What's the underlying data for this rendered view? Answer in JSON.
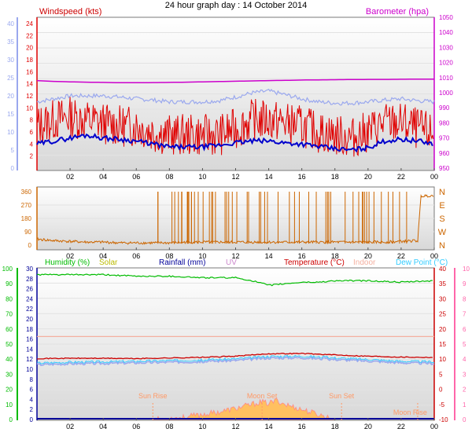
{
  "title": "24 hour graph day : 14 October 2014",
  "colors": {
    "wind": "#e00000",
    "gust_avg": "#0000cc",
    "wind_light": "#9aa8ee",
    "baro": "#cc00cc",
    "dir": "#cc6600",
    "humidity": "#00bb00",
    "solar": "#bbbb00",
    "rain": "#000099",
    "uv": "#cc88cc",
    "temp": "#cc0000",
    "indoor": "#f4b0a0",
    "dew": "#33ccff",
    "solar_fill": "#ffc060",
    "solar_fill2": "#ff8888",
    "marker": "#ff9966"
  },
  "x_labels": [
    "02",
    "04",
    "06",
    "08",
    "10",
    "12",
    "14",
    "16",
    "18",
    "20",
    "22",
    "00"
  ],
  "events": [
    {
      "label": "Sun Rise",
      "x": 7.0
    },
    {
      "label": "Moon Set",
      "x": 13.6
    },
    {
      "label": "Sun Set",
      "x": 18.4
    },
    {
      "label": "Moon Rise",
      "x": 23.0
    }
  ],
  "chart_data": [
    {
      "type": "line",
      "id": "wind",
      "title": "Windspeed (kts)",
      "ylabel_right": "Barometer (hpa)",
      "ylim_left_red": [
        0,
        24
      ],
      "ticks_left_red": [
        2,
        4,
        6,
        8,
        10,
        12,
        14,
        16,
        18,
        20,
        22,
        24
      ],
      "ylim_left_blue": [
        0,
        40
      ],
      "ticks_left_blue": [
        0,
        5,
        10,
        15,
        20,
        25,
        30,
        35,
        40
      ],
      "ylim_right": [
        950,
        1050
      ],
      "ticks_right": [
        950,
        960,
        970,
        980,
        990,
        1000,
        1010,
        1020,
        1030,
        1040,
        1050
      ],
      "series": [
        {
          "name": "Barometer",
          "x": [
            0,
            1,
            2,
            3,
            4,
            5,
            6,
            7,
            8,
            9,
            10,
            11,
            12,
            13,
            14,
            15,
            16,
            17,
            18,
            19,
            20,
            21,
            22,
            23,
            24
          ],
          "values": [
            1008,
            1007.5,
            1007.2,
            1007,
            1006.8,
            1006.6,
            1006.6,
            1006.7,
            1006.8,
            1007,
            1007.2,
            1007.4,
            1007.6,
            1007.8,
            1008,
            1008.2,
            1008.4,
            1008.5,
            1008.6,
            1008.7,
            1008.8,
            1008.8,
            1008.9,
            1009,
            1009
          ]
        },
        {
          "name": "Windspeed",
          "x": [
            0,
            1,
            2,
            3,
            4,
            5,
            6,
            7,
            8,
            9,
            10,
            11,
            12,
            13,
            14,
            15,
            16,
            17,
            18,
            19,
            20,
            21,
            22,
            23,
            24
          ],
          "values": [
            7,
            8,
            8.5,
            8,
            7.5,
            7,
            7,
            6,
            5.5,
            5.5,
            5.5,
            5.5,
            6.5,
            8,
            8,
            7.5,
            7,
            6,
            5.5,
            5,
            6,
            7.5,
            7.5,
            6.5,
            5.5
          ]
        },
        {
          "name": "Average",
          "x": [
            0,
            1,
            2,
            3,
            4,
            5,
            6,
            7,
            8,
            9,
            10,
            11,
            12,
            13,
            14,
            15,
            16,
            17,
            18,
            19,
            20,
            21,
            22,
            23,
            24
          ],
          "values": [
            4,
            4.5,
            5,
            5.5,
            5,
            4.8,
            4.5,
            4,
            3.5,
            3.5,
            3.5,
            3.8,
            4.2,
            4.5,
            4.5,
            4.2,
            4,
            3.6,
            3.2,
            3,
            3.4,
            4.5,
            4.8,
            4.5,
            4
          ]
        },
        {
          "name": "Gust",
          "x": [
            0,
            1,
            2,
            3,
            4,
            5,
            6,
            7,
            8,
            9,
            10,
            11,
            12,
            13,
            14,
            15,
            16,
            17,
            18,
            19,
            20,
            21,
            22,
            23,
            24
          ],
          "values": [
            11,
            11.5,
            12,
            12,
            12,
            11.8,
            11.5,
            11.3,
            11,
            11,
            11,
            11.2,
            11.8,
            12.5,
            12.8,
            12.2,
            11.5,
            11,
            10.8,
            10.8,
            11,
            11.3,
            11.5,
            11.2,
            11
          ]
        }
      ]
    },
    {
      "type": "line",
      "id": "direction",
      "ylim": [
        0,
        360
      ],
      "ticks": [
        0,
        90,
        180,
        270,
        360
      ],
      "right_labels": [
        "N",
        "W",
        "S",
        "E",
        "N"
      ],
      "series": [
        {
          "name": "Wind Direction",
          "x": [
            0,
            1,
            2,
            3,
            4,
            5,
            6,
            7,
            8,
            9,
            10,
            11,
            12,
            13,
            14,
            15,
            16,
            17,
            18,
            19,
            20,
            21,
            22,
            23,
            23.2,
            24
          ],
          "values": [
            40,
            30,
            25,
            20,
            20,
            15,
            15,
            15,
            15,
            20,
            20,
            20,
            20,
            20,
            20,
            20,
            20,
            20,
            20,
            20,
            20,
            20,
            25,
            30,
            330,
            335
          ]
        }
      ]
    },
    {
      "type": "line",
      "id": "temp",
      "ylim_humidity": [
        0,
        100
      ],
      "ticks_humidity": [
        0,
        10,
        20,
        30,
        40,
        50,
        60,
        70,
        80,
        90,
        100
      ],
      "ylim_rain": [
        0,
        30
      ],
      "ticks_rain": [
        0,
        2,
        4,
        6,
        8,
        10,
        12,
        14,
        16,
        18,
        20,
        22,
        24,
        26,
        28,
        30
      ],
      "ylim_temp": [
        -10,
        40
      ],
      "ticks_temp": [
        -10,
        -5,
        0,
        5,
        10,
        15,
        20,
        25,
        30,
        35,
        40
      ],
      "ylim_uv": [
        0,
        10
      ],
      "ticks_uv": [
        0,
        1,
        2,
        3,
        4,
        5,
        6,
        7,
        8,
        9,
        10
      ],
      "legend": [
        "Humidity (%)",
        "Solar",
        "Rainfall (mm)",
        "UV",
        "Temperature (°C)",
        "Indoor",
        "Dew Point (°C)"
      ],
      "series": [
        {
          "name": "Humidity (%)",
          "x": [
            0,
            2,
            4,
            6,
            8,
            10,
            12,
            13,
            14,
            15,
            16,
            17,
            18,
            20,
            22,
            24
          ],
          "values": [
            96,
            96,
            96,
            95,
            95,
            94,
            94,
            92,
            89,
            90,
            91,
            91,
            92,
            92,
            91,
            92
          ]
        },
        {
          "name": "Temperature (°C)",
          "x": [
            0,
            2,
            4,
            6,
            8,
            10,
            12,
            14,
            16,
            18,
            20,
            22,
            24
          ],
          "values": [
            10.2,
            10.3,
            10.3,
            10.2,
            10.4,
            10.6,
            11.0,
            11.8,
            11.9,
            11.4,
            11.0,
            10.7,
            10.6
          ]
        },
        {
          "name": "Dew Point (°C)",
          "x": [
            0,
            2,
            4,
            6,
            8,
            10,
            12,
            14,
            16,
            18,
            20,
            22,
            24
          ],
          "values": [
            8.2,
            8.5,
            8.6,
            8.8,
            9.0,
            9.2,
            9.6,
            10.4,
            10.5,
            9.9,
            9.4,
            8.8,
            8.6
          ]
        },
        {
          "name": "Indoor",
          "x": [
            0,
            24
          ],
          "values": [
            17.5,
            17.5
          ]
        },
        {
          "name": "Solar",
          "x": [
            7,
            8,
            9,
            10,
            11,
            12,
            13,
            13.5,
            14,
            14.5,
            15,
            16,
            17,
            18
          ],
          "values": [
            0,
            0.2,
            0.5,
            1.0,
            1.5,
            2.2,
            3.0,
            3.5,
            3.2,
            3.8,
            3.0,
            2.0,
            1.0,
            0
          ]
        },
        {
          "name": "Rainfall (mm)",
          "x": [
            0,
            24
          ],
          "values": [
            0,
            0
          ]
        }
      ]
    }
  ]
}
